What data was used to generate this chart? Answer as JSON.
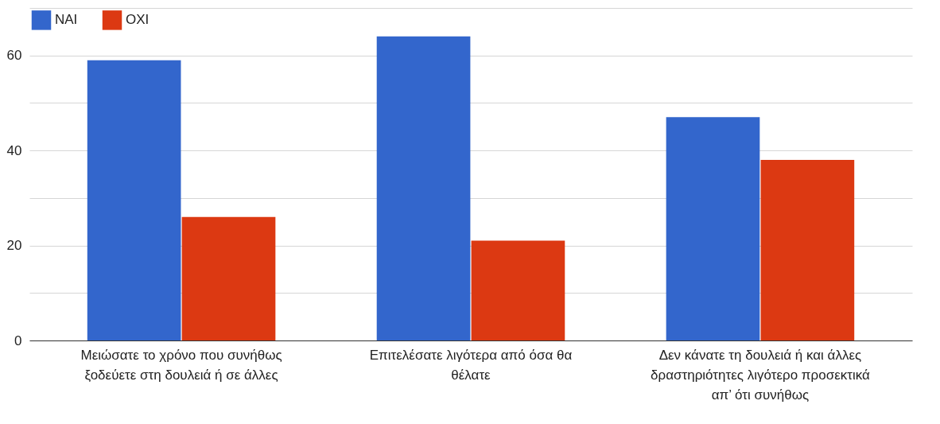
{
  "chart_data": {
    "type": "bar",
    "categories": [
      "Μειώσατε το χρόνο που συνήθως ξοδεύετε στη δουλειά ή σε άλλες",
      "Επιτελέσατε λιγότερα από όσα θα θέλατε",
      "Δεν κάνατε τη δουλειά ή και άλλες δραστηριότητες λιγότερο προσεκτικά απ’ ότι συνήθως"
    ],
    "series": [
      {
        "name": "ΝΑΙ",
        "color": "#3366cc",
        "values": [
          59,
          64,
          47
        ]
      },
      {
        "name": "ΟΧΙ",
        "color": "#dc3912",
        "values": [
          26,
          21,
          38
        ]
      }
    ],
    "ylim": [
      0,
      70
    ],
    "yticks": [
      0,
      {
        "value": 10,
        "label": null
      },
      20,
      {
        "value": 30,
        "label": null
      },
      40,
      {
        "value": 50,
        "label": null
      },
      60,
      {
        "value": 70,
        "label": null
      }
    ],
    "grid": "y",
    "legend": "top left"
  }
}
